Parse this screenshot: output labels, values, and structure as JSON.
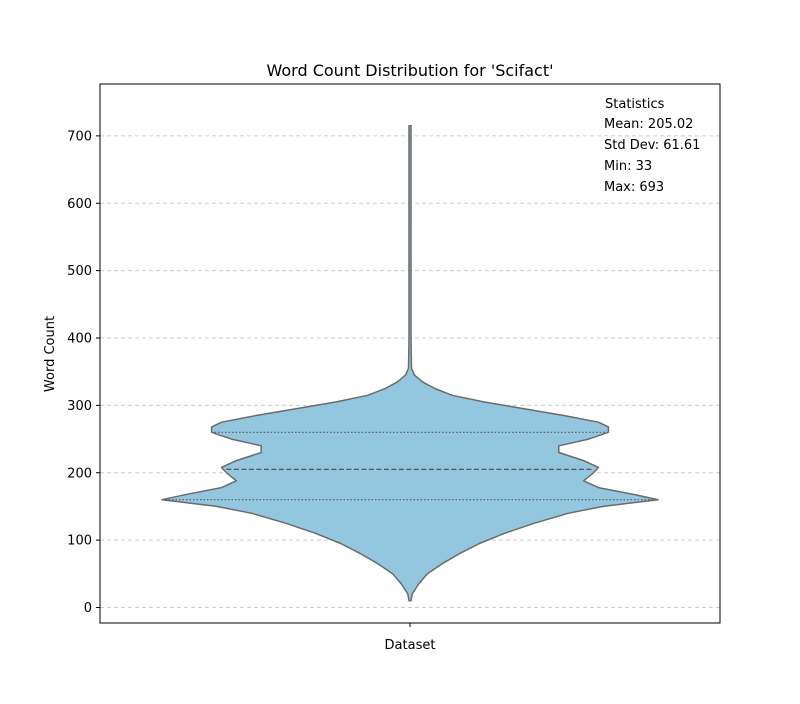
{
  "chart_data": {
    "type": "violin",
    "title": "Word Count Distribution for 'Scifact'",
    "xlabel": "Dataset",
    "ylabel": "Word Count",
    "ylim": [
      -23,
      777
    ],
    "yticks": [
      0,
      100,
      200,
      300,
      400,
      500,
      600,
      700
    ],
    "grid": true,
    "grid_style": "dashed-horizontal",
    "fill_color": "#92c7df",
    "edge_color": "#6b6b6b",
    "violin_extent": [
      10,
      715
    ],
    "quartiles": [
      160,
      205,
      260
    ],
    "density_profile": [
      {
        "y": 10,
        "half_width": 0.004
      },
      {
        "y": 20,
        "half_width": 0.009
      },
      {
        "y": 35,
        "half_width": 0.035
      },
      {
        "y": 50,
        "half_width": 0.07
      },
      {
        "y": 65,
        "half_width": 0.13
      },
      {
        "y": 80,
        "half_width": 0.2
      },
      {
        "y": 95,
        "half_width": 0.28
      },
      {
        "y": 110,
        "half_width": 0.38
      },
      {
        "y": 125,
        "half_width": 0.5
      },
      {
        "y": 140,
        "half_width": 0.64
      },
      {
        "y": 150,
        "half_width": 0.78
      },
      {
        "y": 160,
        "half_width": 1.0
      },
      {
        "y": 168,
        "half_width": 0.9
      },
      {
        "y": 178,
        "half_width": 0.76
      },
      {
        "y": 188,
        "half_width": 0.7
      },
      {
        "y": 200,
        "half_width": 0.74
      },
      {
        "y": 208,
        "half_width": 0.76
      },
      {
        "y": 218,
        "half_width": 0.7
      },
      {
        "y": 230,
        "half_width": 0.6
      },
      {
        "y": 240,
        "half_width": 0.6
      },
      {
        "y": 250,
        "half_width": 0.72
      },
      {
        "y": 260,
        "half_width": 0.8
      },
      {
        "y": 268,
        "half_width": 0.8
      },
      {
        "y": 275,
        "half_width": 0.76
      },
      {
        "y": 285,
        "half_width": 0.62
      },
      {
        "y": 295,
        "half_width": 0.46
      },
      {
        "y": 305,
        "half_width": 0.3
      },
      {
        "y": 315,
        "half_width": 0.17
      },
      {
        "y": 325,
        "half_width": 0.1
      },
      {
        "y": 335,
        "half_width": 0.05
      },
      {
        "y": 345,
        "half_width": 0.018
      },
      {
        "y": 355,
        "half_width": 0.006
      },
      {
        "y": 400,
        "half_width": 0.004
      },
      {
        "y": 715,
        "half_width": 0.004
      }
    ],
    "annotations": {
      "heading": "Statistics",
      "lines": [
        "Mean: 205.02",
        "Std Dev: 61.61",
        "Min: 33",
        "Max: 693"
      ]
    }
  }
}
